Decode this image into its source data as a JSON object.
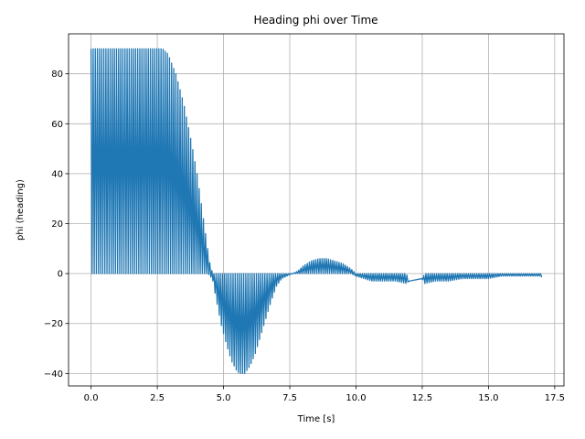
{
  "chart_data": {
    "type": "line",
    "title": "Heading phi over Time",
    "xlabel": "Time [s]",
    "ylabel": "phi (heading)",
    "xlim": [
      -0.85,
      17.85
    ],
    "ylim": [
      -45,
      96
    ],
    "xticks": [
      0.0,
      2.5,
      5.0,
      7.5,
      10.0,
      12.5,
      15.0,
      17.5
    ],
    "xtick_labels": [
      "0.0",
      "2.5",
      "5.0",
      "7.5",
      "10.0",
      "12.5",
      "15.0",
      "17.5"
    ],
    "yticks": [
      -40,
      -20,
      0,
      20,
      40,
      60,
      80
    ],
    "ytick_labels": [
      "−40",
      "−20",
      "0",
      "20",
      "40",
      "60",
      "80"
    ],
    "grid": true,
    "line_color": "#1f77b4",
    "series": [
      {
        "envelope": {
          "t": [
            0.0,
            1.95,
            2.05,
            2.4,
            2.7,
            2.9,
            3.2,
            3.5,
            3.8,
            4.0,
            4.2,
            4.4,
            4.5,
            4.6,
            4.7,
            4.9,
            5.1,
            5.3,
            5.5,
            5.6,
            5.8,
            6.0,
            6.2,
            6.4,
            6.6,
            6.8,
            7.0,
            7.2,
            7.4,
            7.6,
            7.8,
            8.0,
            8.3,
            8.6,
            8.9,
            9.2,
            9.5,
            9.8,
            10.0,
            10.3,
            10.6,
            11.0,
            11.5,
            11.9,
            12.0,
            12.5,
            12.6,
            13.0,
            13.5,
            14.0,
            14.5,
            15.0,
            15.5,
            16.0,
            16.5,
            17.0
          ],
          "max": [
            90,
            90,
            90,
            90,
            90,
            88,
            80,
            68,
            52,
            40,
            25,
            10,
            3,
            0,
            0,
            0,
            0,
            0,
            0,
            0,
            0,
            0,
            0,
            0,
            0,
            0,
            0,
            0,
            0,
            0,
            1,
            3,
            5,
            6,
            6,
            5,
            4,
            2,
            0,
            0,
            0,
            0,
            0,
            0,
            -3,
            -2,
            0,
            0,
            0,
            0,
            0,
            0,
            0,
            0,
            0,
            0
          ],
          "min": [
            0,
            0,
            0,
            0,
            0,
            0,
            0,
            0,
            0,
            0,
            0,
            0,
            -1,
            -3,
            -9,
            -20,
            -28,
            -35,
            -39,
            -40,
            -40,
            -37,
            -32,
            -25,
            -18,
            -11,
            -5,
            -2,
            -1,
            0,
            0,
            0,
            0,
            0,
            0,
            0,
            0,
            0,
            -1,
            -2,
            -3,
            -3,
            -3,
            -4,
            -3,
            -2,
            -4,
            -3,
            -3,
            -2,
            -2,
            -2,
            -1,
            -1,
            -1,
            -1
          ]
        },
        "oscillation_period_s": 0.08,
        "gap_t": [
          12.05,
          12.45
        ],
        "end_t": 17.0,
        "end_value": -1.5
      }
    ]
  }
}
